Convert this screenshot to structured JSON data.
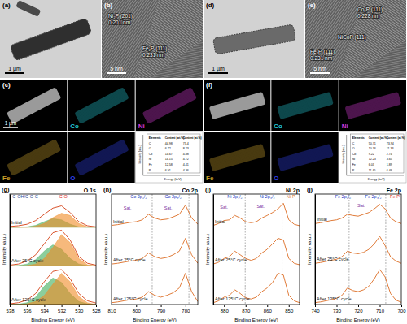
{
  "images": [
    {
      "label": "(a)",
      "scale_bar": "1 µm"
    },
    {
      "label": "(b)",
      "scale_bar": "5 nm",
      "annotations": [
        "Ni₂P (201)",
        "0.201 nm",
        "Fe₂P (111)",
        "0.231 nm"
      ]
    },
    {
      "label": "(d)",
      "scale_bar": "1 µm"
    },
    {
      "label": "(e)",
      "scale_bar": "5 nm",
      "annotations": [
        "Co₂P (111)",
        "0.228 nm",
        "NiCoP (111)",
        "Fe₂P (111)",
        "0.231 nm"
      ]
    }
  ],
  "maps": [
    {
      "label": "(c)",
      "scale_bar": "1 µm",
      "elements": [
        {
          "name": "Co",
          "color": "#22c7d3"
        },
        {
          "name": "Ni",
          "color": "#d63ad6"
        },
        {
          "name": "Fe",
          "color": "#c9a12a"
        },
        {
          "name": "O",
          "color": "#2f3fe6"
        }
      ],
      "inset": {
        "y_label": "Intensity (a.u.)",
        "x_label": "Energy (keV)",
        "table": {
          "header": [
            "Elements",
            "Content (wt.%)",
            "Content (at.%)"
          ],
          "rows": [
            [
              "C",
              44.98,
              73.4
            ],
            [
              "O",
              6.72,
              8.23
            ],
            [
              "Co",
              14.67,
              4.88
            ],
            [
              "Ni",
              14.15,
              4.72
            ],
            [
              "Fe",
              12.58,
              4.41
            ],
            [
              "P",
              6.91,
              4.36
            ]
          ]
        }
      }
    },
    {
      "label": "(f)",
      "elements": [
        {
          "name": "Co",
          "color": "#22c7d3"
        },
        {
          "name": "Ni",
          "color": "#d63ad6"
        },
        {
          "name": "Fe",
          "color": "#c9a12a"
        },
        {
          "name": "O",
          "color": "#2f3fe6"
        }
      ],
      "inset": {
        "y_label": "Intensity (a.u.)",
        "x_label": "Energy (keV)",
        "table": {
          "header": [
            "Elements",
            "Content (wt.%)",
            "Content (at.%)"
          ],
          "rows": [
            [
              "C",
              50.71,
              73.94
            ],
            [
              "O",
              10.36,
              11.33
            ],
            [
              "Co",
              9.22,
              2.74
            ],
            [
              "Ni",
              12.23,
              3.65
            ],
            [
              "Fe",
              6.03,
              1.89
            ],
            [
              "P",
              11.45,
              6.46
            ]
          ]
        }
      }
    }
  ],
  "chart_data": [
    {
      "type": "line",
      "label": "(g)",
      "title": "O 1s",
      "x_label": "Binding Energy (eV)",
      "y_label": "Intensity (a.u.)",
      "xlim": [
        538,
        528
      ],
      "xticks": [
        538,
        536,
        534,
        532,
        530,
        528
      ],
      "ylim": [
        0,
        3
      ],
      "tick_labels": "x",
      "x": [
        538,
        537,
        536,
        535,
        534,
        533,
        532,
        531,
        530,
        529,
        528
      ],
      "series": [
        {
          "type": "area",
          "color": "#3fae5a",
          "base": 2.1,
          "values": [
            2.1,
            2.1,
            2.11,
            2.15,
            2.25,
            2.33,
            2.3,
            2.18,
            2.11,
            2.1,
            2.1
          ]
        },
        {
          "type": "area",
          "color": "#f08a24",
          "base": 2.1,
          "values": [
            2.1,
            2.1,
            2.1,
            2.13,
            2.2,
            2.36,
            2.48,
            2.42,
            2.2,
            2.11,
            2.1
          ]
        },
        {
          "type": "area",
          "color": "#3fae5a",
          "base": 1.05,
          "values": [
            1.05,
            1.06,
            1.1,
            1.22,
            1.45,
            1.62,
            1.5,
            1.25,
            1.1,
            1.06,
            1.05
          ]
        },
        {
          "type": "area",
          "color": "#f08a24",
          "base": 1.05,
          "values": [
            1.05,
            1.05,
            1.06,
            1.1,
            1.25,
            1.55,
            1.9,
            1.68,
            1.25,
            1.08,
            1.05
          ]
        },
        {
          "type": "area",
          "color": "#3fae5a",
          "base": 0,
          "values": [
            0,
            0.01,
            0.05,
            0.2,
            0.5,
            0.72,
            0.6,
            0.3,
            0.08,
            0.02,
            0
          ]
        },
        {
          "type": "area",
          "color": "#f08a24",
          "base": 0,
          "values": [
            0,
            0,
            0.02,
            0.08,
            0.25,
            0.55,
            0.85,
            0.62,
            0.22,
            0.05,
            0
          ]
        },
        {
          "name": "Initial",
          "color": "#d9532c",
          "values": [
            2.12,
            2.14,
            2.18,
            2.28,
            2.45,
            2.62,
            2.68,
            2.5,
            2.25,
            2.14,
            2.11
          ]
        },
        {
          "name": "After 25°C cycle",
          "color": "#d9532c",
          "values": [
            1.07,
            1.1,
            1.18,
            1.35,
            1.65,
            1.95,
            2.02,
            1.75,
            1.3,
            1.12,
            1.07
          ]
        },
        {
          "name": "After 125°C cycle",
          "color": "#d9532c",
          "values": [
            0.02,
            0.05,
            0.12,
            0.3,
            0.62,
            0.9,
            0.95,
            0.7,
            0.3,
            0.1,
            0.04
          ]
        }
      ],
      "annotations": [
        {
          "text": "C-OH/C-O-C",
          "x": 536.2,
          "y": 2.88,
          "color": "#2a4fa0"
        },
        {
          "text": "C-O",
          "x": 531.8,
          "y": 2.88,
          "color": "#e0302a"
        }
      ]
    },
    {
      "type": "line",
      "label": "(h)",
      "title": "Co 2p",
      "x_label": "Binding Energy (eV)",
      "y_label": "Intensity (a.u.)",
      "xlim": [
        810,
        775
      ],
      "xticks": [
        810,
        800,
        790,
        780
      ],
      "ylim": [
        0,
        3
      ],
      "tick_labels": "x",
      "x": [
        810,
        807.5,
        805,
        802.5,
        800,
        797.5,
        795,
        792.5,
        790,
        787.5,
        785,
        782.5,
        780,
        777.5,
        775
      ],
      "series": [
        {
          "name": "Initial",
          "color": "#e07b39",
          "values": [
            2.15,
            2.17,
            2.2,
            2.23,
            2.25,
            2.3,
            2.45,
            2.35,
            2.3,
            2.32,
            2.38,
            2.45,
            2.7,
            2.35,
            2.18
          ]
        },
        {
          "name": "After 25°C cycle",
          "color": "#e07b39",
          "values": [
            1.1,
            1.12,
            1.15,
            1.18,
            1.2,
            1.25,
            1.4,
            1.3,
            1.25,
            1.28,
            1.35,
            1.45,
            1.8,
            1.35,
            1.12
          ]
        },
        {
          "name": "After 125°C cycle",
          "color": "#e07b39",
          "values": [
            0.05,
            0.07,
            0.1,
            0.13,
            0.15,
            0.2,
            0.35,
            0.25,
            0.2,
            0.25,
            0.32,
            0.45,
            0.85,
            0.35,
            0.08
          ]
        }
      ],
      "reference_lines": [
        793.5,
        778.6
      ],
      "annotations": [
        {
          "text": "Co 2p₁/₂",
          "x": 799,
          "y": 2.88,
          "color": "#1f3fbf"
        },
        {
          "text": "Co 2p₃/₂",
          "x": 785,
          "y": 2.88,
          "color": "#1f3fbf"
        },
        {
          "text": "Sat.",
          "x": 803.5,
          "y": 2.58,
          "color": "#7b2fa0"
        },
        {
          "text": "Sat.",
          "x": 787,
          "y": 2.58,
          "color": "#7b2fa0"
        }
      ]
    },
    {
      "type": "line",
      "label": "(i)",
      "title": "Ni 2p",
      "x_label": "Binding Energy (eV)",
      "y_label": "Intensity (a.u.)",
      "xlim": [
        885,
        845
      ],
      "xticks": [
        880,
        870,
        860,
        850
      ],
      "ylim": [
        0,
        3
      ],
      "tick_labels": "x",
      "x": [
        885,
        882.5,
        880,
        877.5,
        875,
        872.5,
        870,
        867.5,
        865,
        862.5,
        860,
        857.5,
        855,
        852.5,
        850,
        847.5,
        845
      ],
      "series": [
        {
          "name": "Initial",
          "color": "#e07b39",
          "values": [
            2.15,
            2.2,
            2.28,
            2.3,
            2.42,
            2.35,
            2.25,
            2.22,
            2.25,
            2.35,
            2.42,
            2.5,
            2.6,
            2.75,
            2.3,
            2.18,
            2.14
          ]
        },
        {
          "name": "After 25°C cycle",
          "color": "#e07b39",
          "values": [
            1.1,
            1.15,
            1.25,
            1.3,
            1.45,
            1.35,
            1.25,
            1.2,
            1.25,
            1.4,
            1.5,
            1.65,
            1.8,
            1.75,
            1.25,
            1.12,
            1.08
          ]
        },
        {
          "name": "After 125°C cycle",
          "color": "#e07b39",
          "values": [
            0.05,
            0.1,
            0.2,
            0.25,
            0.4,
            0.3,
            0.18,
            0.15,
            0.2,
            0.35,
            0.45,
            0.6,
            0.85,
            0.8,
            0.25,
            0.1,
            0.05
          ]
        }
      ],
      "reference_lines": [
        870.2,
        853.1
      ],
      "annotations": [
        {
          "text": "Ni 2p₁/₂",
          "x": 875,
          "y": 2.88,
          "color": "#1f3fbf"
        },
        {
          "text": "Ni 2p₃/₂",
          "x": 860,
          "y": 2.88,
          "color": "#1f3fbf"
        },
        {
          "text": "Sat.",
          "x": 880,
          "y": 2.6,
          "color": "#7b2fa0"
        },
        {
          "text": "Sat.",
          "x": 863,
          "y": 2.62,
          "color": "#7b2fa0"
        },
        {
          "text": "Ni-P",
          "x": 849,
          "y": 2.88,
          "color": "#e07b39"
        }
      ]
    },
    {
      "type": "line",
      "label": "(j)",
      "title": "Fe 2p",
      "x_label": "Binding Energy (eV)",
      "y_label": "Intensity (a.u.)",
      "xlim": [
        740,
        700
      ],
      "xticks": [
        740,
        730,
        720,
        710,
        700
      ],
      "ylim": [
        0,
        3
      ],
      "tick_labels": "x",
      "x": [
        740,
        737.5,
        735,
        732.5,
        730,
        727.5,
        725,
        722.5,
        720,
        717.5,
        715,
        712.5,
        710,
        707.5,
        705,
        702.5,
        700
      ],
      "series": [
        {
          "name": "Initial",
          "color": "#e07b39",
          "values": [
            2.2,
            2.22,
            2.25,
            2.28,
            2.3,
            2.35,
            2.45,
            2.42,
            2.4,
            2.45,
            2.5,
            2.6,
            2.72,
            2.6,
            2.35,
            2.25,
            2.2
          ]
        },
        {
          "name": "After 25°C cycle",
          "color": "#e07b39",
          "values": [
            1.12,
            1.14,
            1.17,
            1.2,
            1.23,
            1.3,
            1.45,
            1.4,
            1.38,
            1.42,
            1.5,
            1.65,
            1.85,
            1.6,
            1.3,
            1.18,
            1.12
          ]
        },
        {
          "name": "After 125°C cycle",
          "color": "#e07b39",
          "values": [
            0.05,
            0.07,
            0.1,
            0.13,
            0.17,
            0.25,
            0.45,
            0.38,
            0.35,
            0.4,
            0.5,
            0.7,
            0.95,
            0.75,
            0.3,
            0.12,
            0.06
          ]
        }
      ],
      "reference_lines": [
        724.2,
        707.2
      ],
      "annotations": [
        {
          "text": "Fe 2p₁/₂",
          "x": 727,
          "y": 2.88,
          "color": "#1f3fbf"
        },
        {
          "text": "Fe 2p₃/₂",
          "x": 713,
          "y": 2.88,
          "color": "#1f3fbf"
        },
        {
          "text": "Sat.",
          "x": 718.5,
          "y": 2.64,
          "color": "#7b2fa0"
        },
        {
          "text": "Fe-P",
          "x": 703,
          "y": 2.88,
          "color": "#e0302a"
        }
      ]
    }
  ]
}
